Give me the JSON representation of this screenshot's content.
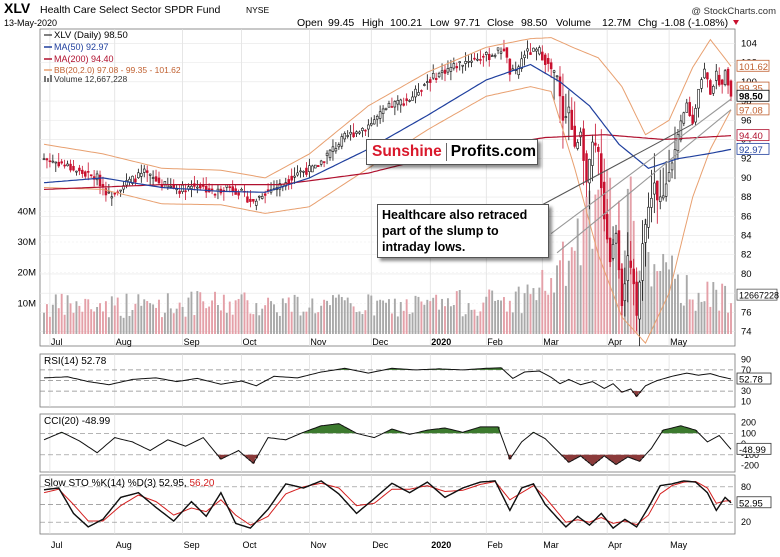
{
  "header": {
    "symbol": "XLV",
    "name": "Health Care Select Sector SPDR Fund",
    "exchange": "NYSE",
    "date": "13-May-2020",
    "open_label": "Open",
    "open": "99.45",
    "high_label": "High",
    "high": "100.21",
    "low_label": "Low",
    "low": "97.71",
    "close_label": "Close",
    "close": "98.50",
    "volume_label": "Volume",
    "volume": "12.7M",
    "chg_label": "Chg",
    "chg": "-1.08 (-1.08%)",
    "watermark": "@ StockCharts.com"
  },
  "legend": {
    "price": "XLV (Daily) 98.50",
    "ma50": "MA(50) 92.97",
    "ma200": "MA(200) 94.40",
    "bb": "BB(20,2.0) 97.08 - 99.35 - 101.62",
    "volume": "Volume 12,667,228"
  },
  "annotations": {
    "brand_a": "Sunshine",
    "brand_b": "Profits.com",
    "note": "Healthcare also retraced part of the slump to intraday lows."
  },
  "colors": {
    "up": "#111111",
    "down": "#c8102e",
    "ma50": "#1f3f9e",
    "ma200": "#b0102e",
    "bb": "#e8a070",
    "vol_up": "#a9a9a9",
    "vol_down": "#e4a0a8",
    "pos_fill": "#3c7a2e",
    "neg_fill": "#8b3a3a",
    "stoK": "#111111",
    "stoD": "#d42020"
  },
  "chart_data": [
    {
      "type": "candlestick",
      "title": "XLV (Daily)",
      "x_tick_labels": [
        "Jul",
        "Aug",
        "Sep",
        "Oct",
        "Nov",
        "Dec",
        "2020",
        "Feb",
        "Mar",
        "Apr",
        "May"
      ],
      "y_ticks": [
        74,
        76,
        78,
        80,
        82,
        84,
        86,
        88,
        90,
        92,
        94,
        96,
        98,
        100,
        102,
        104
      ],
      "ylim": [
        72.5,
        105.5
      ],
      "price_path": [
        [
          0,
          92.0
        ],
        [
          6,
          91.5
        ],
        [
          12,
          90.6
        ],
        [
          18,
          90.0
        ],
        [
          22,
          88.2
        ],
        [
          28,
          89.5
        ],
        [
          34,
          90.5
        ],
        [
          40,
          89.3
        ],
        [
          46,
          88.8
        ],
        [
          52,
          89.3
        ],
        [
          58,
          88.4
        ],
        [
          62,
          89.2
        ],
        [
          67,
          88.4
        ],
        [
          71,
          87.4
        ],
        [
          74,
          88.4
        ],
        [
          80,
          89.2
        ],
        [
          86,
          90.6
        ],
        [
          92,
          91.0
        ],
        [
          96,
          92.4
        ],
        [
          102,
          94.2
        ],
        [
          110,
          95.5
        ],
        [
          118,
          97.6
        ],
        [
          124,
          98.2
        ],
        [
          130,
          100.1
        ],
        [
          136,
          101.2
        ],
        [
          144,
          102.3
        ],
        [
          151,
          102.7
        ],
        [
          156,
          103.5
        ],
        [
          158,
          101.0
        ],
        [
          160,
          100.9
        ],
        [
          163,
          103.0
        ],
        [
          168,
          103.2
        ],
        [
          171,
          101.7
        ],
        [
          174,
          100.4
        ],
        [
          176,
          96.2
        ],
        [
          178,
          97.3
        ],
        [
          180,
          93.0
        ],
        [
          182,
          95.0
        ],
        [
          184,
          89.5
        ],
        [
          186,
          93.5
        ],
        [
          188,
          92.6
        ],
        [
          190,
          86.0
        ],
        [
          192,
          81.5
        ],
        [
          194,
          84.5
        ],
        [
          196,
          77.0
        ],
        [
          198,
          81.5
        ],
        [
          200,
          79.0
        ],
        [
          201,
          75.5
        ],
        [
          203,
          83.5
        ],
        [
          205,
          86.8
        ],
        [
          207,
          89.5
        ],
        [
          208,
          87.5
        ],
        [
          210,
          88.0
        ],
        [
          212,
          91.0
        ],
        [
          214,
          92.8
        ],
        [
          216,
          95.5
        ],
        [
          218,
          97.7
        ],
        [
          220,
          95.6
        ],
        [
          222,
          99.5
        ],
        [
          224,
          101.2
        ],
        [
          226,
          99.0
        ],
        [
          228,
          100.7
        ],
        [
          230,
          99.5
        ],
        [
          231,
          101.6
        ],
        [
          233,
          98.5
        ]
      ],
      "ma50_path": [
        [
          0,
          89.5
        ],
        [
          20,
          90.0
        ],
        [
          40,
          89.0
        ],
        [
          60,
          88.6
        ],
        [
          75,
          88.5
        ],
        [
          90,
          90.0
        ],
        [
          110,
          93.0
        ],
        [
          130,
          96.5
        ],
        [
          150,
          100.2
        ],
        [
          165,
          101.8
        ],
        [
          175,
          100.0
        ],
        [
          185,
          97.5
        ],
        [
          195,
          93.5
        ],
        [
          205,
          91.0
        ],
        [
          215,
          92.0
        ],
        [
          225,
          92.5
        ],
        [
          233,
          92.97
        ]
      ],
      "ma200_path": [
        [
          0,
          88.8
        ],
        [
          40,
          89.3
        ],
        [
          80,
          89.3
        ],
        [
          110,
          90.5
        ],
        [
          140,
          92.8
        ],
        [
          170,
          94.2
        ],
        [
          190,
          94.5
        ],
        [
          210,
          94.0
        ],
        [
          233,
          94.4
        ]
      ],
      "bb_upper_path": [
        [
          0,
          93.5
        ],
        [
          20,
          92.5
        ],
        [
          40,
          91.0
        ],
        [
          60,
          90.8
        ],
        [
          75,
          90.0
        ],
        [
          90,
          92.5
        ],
        [
          110,
          97.5
        ],
        [
          130,
          101.0
        ],
        [
          150,
          103.6
        ],
        [
          165,
          104.5
        ],
        [
          172,
          104.6
        ],
        [
          180,
          103.5
        ],
        [
          188,
          102.5
        ],
        [
          196,
          99.5
        ],
        [
          204,
          94.5
        ],
        [
          212,
          96.0
        ],
        [
          220,
          101.5
        ],
        [
          226,
          104.4
        ],
        [
          233,
          101.62
        ]
      ],
      "bb_lower_path": [
        [
          0,
          89.0
        ],
        [
          20,
          88.8
        ],
        [
          40,
          87.3
        ],
        [
          60,
          87.2
        ],
        [
          75,
          86.3
        ],
        [
          90,
          87.0
        ],
        [
          110,
          91.0
        ],
        [
          130,
          95.0
        ],
        [
          150,
          98.5
        ],
        [
          165,
          99.5
        ],
        [
          172,
          99.0
        ],
        [
          180,
          91.0
        ],
        [
          188,
          82.0
        ],
        [
          196,
          75.5
        ],
        [
          204,
          72.8
        ],
        [
          212,
          78.0
        ],
        [
          220,
          88.0
        ],
        [
          226,
          93.0
        ],
        [
          233,
          97.08
        ]
      ],
      "last_value_tags": [
        "101.62",
        "99.35",
        "98.50",
        "97.08",
        "94.40",
        "92.97"
      ]
    },
    {
      "type": "bar",
      "title": "Volume",
      "value": "12,667,228",
      "y_ticks": [
        "10M",
        "20M",
        "30M",
        "40M"
      ],
      "ylim": [
        0,
        60
      ],
      "last_value_tag": "12667228",
      "volume_path_M": [
        [
          0,
          9
        ],
        [
          60,
          10
        ],
        [
          120,
          9
        ],
        [
          160,
          11
        ],
        [
          174,
          18
        ],
        [
          180,
          28
        ],
        [
          184,
          33
        ],
        [
          190,
          40
        ],
        [
          196,
          38
        ],
        [
          200,
          35
        ],
        [
          205,
          25
        ],
        [
          215,
          16
        ],
        [
          225,
          12
        ],
        [
          233,
          12.7
        ]
      ]
    },
    {
      "type": "line",
      "title": "RSI(14)",
      "value": "52.78",
      "y_ticks": [
        10,
        30,
        70,
        90
      ],
      "ylim": [
        0,
        100
      ],
      "last_value_tag": "52.78",
      "path": [
        [
          0,
          55
        ],
        [
          8,
          57
        ],
        [
          15,
          48
        ],
        [
          22,
          42
        ],
        [
          30,
          52
        ],
        [
          38,
          55
        ],
        [
          45,
          48
        ],
        [
          52,
          54
        ],
        [
          60,
          43
        ],
        [
          67,
          49
        ],
        [
          72,
          40
        ],
        [
          78,
          58
        ],
        [
          86,
          55
        ],
        [
          94,
          66
        ],
        [
          102,
          73
        ],
        [
          110,
          64
        ],
        [
          118,
          73
        ],
        [
          126,
          70
        ],
        [
          134,
          72
        ],
        [
          142,
          70
        ],
        [
          150,
          73
        ],
        [
          155,
          74
        ],
        [
          159,
          54
        ],
        [
          163,
          66
        ],
        [
          168,
          68
        ],
        [
          172,
          56
        ],
        [
          175,
          44
        ],
        [
          178,
          52
        ],
        [
          182,
          42
        ],
        [
          186,
          48
        ],
        [
          190,
          35
        ],
        [
          193,
          44
        ],
        [
          196,
          28
        ],
        [
          199,
          34
        ],
        [
          201,
          20
        ],
        [
          204,
          40
        ],
        [
          208,
          50
        ],
        [
          213,
          58
        ],
        [
          218,
          64
        ],
        [
          222,
          60
        ],
        [
          226,
          63
        ],
        [
          229,
          58
        ],
        [
          233,
          52.78
        ]
      ]
    },
    {
      "type": "line",
      "title": "CCI(20)",
      "value": "-48.99",
      "y_ticks": [
        -200,
        -100,
        0,
        100,
        200
      ],
      "ylim": [
        -260,
        280
      ],
      "last_value_tag": "-48.99",
      "path": [
        [
          0,
          40
        ],
        [
          6,
          110
        ],
        [
          12,
          30
        ],
        [
          18,
          -80
        ],
        [
          24,
          60
        ],
        [
          30,
          20
        ],
        [
          36,
          -60
        ],
        [
          42,
          40
        ],
        [
          48,
          -20
        ],
        [
          54,
          60
        ],
        [
          60,
          -140
        ],
        [
          66,
          -60
        ],
        [
          71,
          -180
        ],
        [
          76,
          60
        ],
        [
          82,
          40
        ],
        [
          88,
          110
        ],
        [
          94,
          170
        ],
        [
          100,
          190
        ],
        [
          106,
          100
        ],
        [
          112,
          60
        ],
        [
          118,
          140
        ],
        [
          124,
          90
        ],
        [
          130,
          130
        ],
        [
          136,
          150
        ],
        [
          142,
          110
        ],
        [
          148,
          160
        ],
        [
          154,
          160
        ],
        [
          158,
          -140
        ],
        [
          162,
          20
        ],
        [
          166,
          110
        ],
        [
          170,
          50
        ],
        [
          174,
          -60
        ],
        [
          178,
          -170
        ],
        [
          182,
          -110
        ],
        [
          186,
          -200
        ],
        [
          190,
          -110
        ],
        [
          194,
          -190
        ],
        [
          198,
          -120
        ],
        [
          202,
          -160
        ],
        [
          206,
          -40
        ],
        [
          210,
          130
        ],
        [
          216,
          170
        ],
        [
          221,
          130
        ],
        [
          225,
          20
        ],
        [
          229,
          80
        ],
        [
          233,
          -48.99
        ]
      ]
    },
    {
      "type": "line",
      "title": "Slow STO %K(14) %D(3)",
      "value_k": "52.95",
      "value_d": "56.20",
      "y_ticks": [
        20,
        50,
        80
      ],
      "ylim": [
        0,
        100
      ],
      "last_value_tag": "52.95",
      "k_path": [
        [
          0,
          75
        ],
        [
          5,
          78
        ],
        [
          10,
          35
        ],
        [
          15,
          12
        ],
        [
          20,
          25
        ],
        [
          26,
          62
        ],
        [
          32,
          70
        ],
        [
          38,
          45
        ],
        [
          44,
          22
        ],
        [
          50,
          55
        ],
        [
          55,
          30
        ],
        [
          60,
          70
        ],
        [
          65,
          18
        ],
        [
          70,
          10
        ],
        [
          76,
          42
        ],
        [
          82,
          85
        ],
        [
          88,
          78
        ],
        [
          94,
          90
        ],
        [
          100,
          68
        ],
        [
          106,
          35
        ],
        [
          112,
          60
        ],
        [
          118,
          86
        ],
        [
          124,
          70
        ],
        [
          130,
          88
        ],
        [
          136,
          62
        ],
        [
          142,
          78
        ],
        [
          148,
          88
        ],
        [
          153,
          90
        ],
        [
          158,
          40
        ],
        [
          162,
          78
        ],
        [
          166,
          85
        ],
        [
          170,
          50
        ],
        [
          174,
          28
        ],
        [
          177,
          12
        ],
        [
          181,
          30
        ],
        [
          185,
          15
        ],
        [
          189,
          35
        ],
        [
          193,
          10
        ],
        [
          197,
          25
        ],
        [
          201,
          12
        ],
        [
          205,
          45
        ],
        [
          209,
          82
        ],
        [
          213,
          85
        ],
        [
          217,
          90
        ],
        [
          221,
          88
        ],
        [
          225,
          70
        ],
        [
          228,
          40
        ],
        [
          231,
          62
        ],
        [
          233,
          52.95
        ]
      ],
      "d_path": [
        [
          0,
          70
        ],
        [
          5,
          76
        ],
        [
          10,
          50
        ],
        [
          15,
          22
        ],
        [
          20,
          22
        ],
        [
          26,
          48
        ],
        [
          32,
          66
        ],
        [
          38,
          55
        ],
        [
          44,
          32
        ],
        [
          50,
          44
        ],
        [
          55,
          38
        ],
        [
          60,
          58
        ],
        [
          65,
          32
        ],
        [
          70,
          15
        ],
        [
          76,
          30
        ],
        [
          82,
          68
        ],
        [
          88,
          80
        ],
        [
          94,
          86
        ],
        [
          100,
          78
        ],
        [
          106,
          48
        ],
        [
          112,
          52
        ],
        [
          118,
          76
        ],
        [
          124,
          76
        ],
        [
          130,
          82
        ],
        [
          136,
          72
        ],
        [
          142,
          74
        ],
        [
          148,
          84
        ],
        [
          153,
          89
        ],
        [
          158,
          58
        ],
        [
          162,
          70
        ],
        [
          166,
          82
        ],
        [
          170,
          62
        ],
        [
          174,
          38
        ],
        [
          177,
          20
        ],
        [
          181,
          24
        ],
        [
          185,
          20
        ],
        [
          189,
          28
        ],
        [
          193,
          18
        ],
        [
          197,
          22
        ],
        [
          201,
          16
        ],
        [
          205,
          32
        ],
        [
          209,
          68
        ],
        [
          213,
          82
        ],
        [
          217,
          88
        ],
        [
          221,
          89
        ],
        [
          225,
          78
        ],
        [
          228,
          52
        ],
        [
          231,
          56
        ],
        [
          233,
          56.2
        ]
      ]
    }
  ]
}
